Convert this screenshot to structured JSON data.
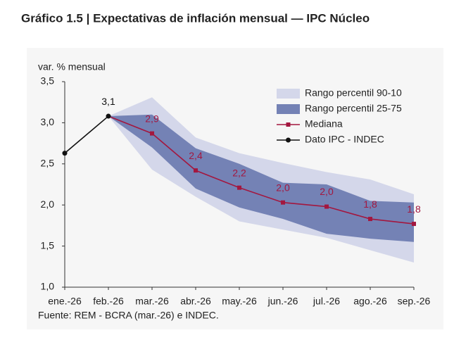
{
  "chart_data": {
    "type": "line",
    "title": "Gráfico 1.5 | Expectativas de inflación mensual — IPC Núcleo",
    "y_label": "var. % mensual",
    "source": "Fuente: REM - BCRA (mar.-26) e INDEC.",
    "categories": [
      "ene.-26",
      "feb.-26",
      "mar.-26",
      "abr.-26",
      "may.-26",
      "jun.-26",
      "jul.-26",
      "ago.-26",
      "sep.-26"
    ],
    "ylim": [
      1.0,
      3.5
    ],
    "yticks": [
      {
        "value": 1.0,
        "label": "1,0"
      },
      {
        "value": 1.5,
        "label": "1,5"
      },
      {
        "value": 2.0,
        "label": "2,0"
      },
      {
        "value": 2.5,
        "label": "2,5"
      },
      {
        "value": 3.0,
        "label": "3,0"
      },
      {
        "value": 3.5,
        "label": "3,5"
      }
    ],
    "bands": [
      {
        "name": "Rango percentil 90-10",
        "color": "#d4d7ea",
        "upper": [
          null,
          3.08,
          3.31,
          2.82,
          2.63,
          2.51,
          2.4,
          2.31,
          2.13
        ],
        "lower": [
          null,
          3.08,
          2.43,
          2.1,
          1.8,
          1.7,
          1.6,
          1.45,
          1.3
        ]
      },
      {
        "name": "Rango percentil 25-75",
        "color": "#7482b5",
        "upper": [
          null,
          3.08,
          3.1,
          2.69,
          2.5,
          2.27,
          2.25,
          2.05,
          2.03
        ],
        "lower": [
          null,
          3.08,
          2.7,
          2.2,
          1.97,
          1.83,
          1.65,
          1.59,
          1.55
        ]
      }
    ],
    "series": [
      {
        "name": "Mediana",
        "color": "#a3173f",
        "marker": "square",
        "values": [
          null,
          3.08,
          2.87,
          2.42,
          2.21,
          2.03,
          1.98,
          1.83,
          1.77
        ],
        "value_labels": [
          null,
          null,
          "2,9",
          "2,4",
          "2,2",
          "2,0",
          "2,0",
          "1,8",
          "1,8"
        ]
      },
      {
        "name": "Dato IPC - INDEC",
        "color": "#111111",
        "marker": "circle",
        "values": [
          2.63,
          3.08,
          null,
          null,
          null,
          null,
          null,
          null,
          null
        ],
        "value_labels": [
          null,
          "3,1",
          null,
          null,
          null,
          null,
          null,
          null,
          null
        ]
      }
    ]
  }
}
